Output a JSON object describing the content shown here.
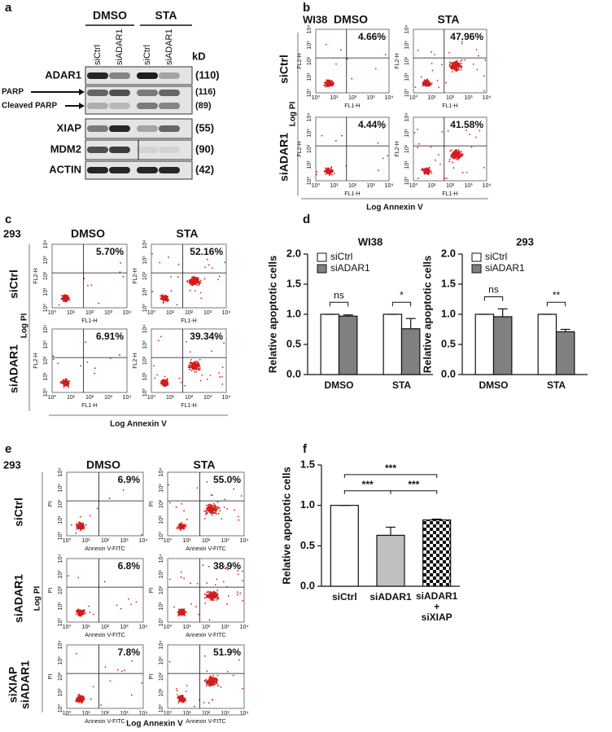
{
  "panels": {
    "a": {
      "label": "a",
      "groups": [
        "DMSO",
        "STA"
      ],
      "lanes": [
        "siCtrl",
        "siADAR1",
        "siCtrl",
        "siADAR1"
      ],
      "unit": "kD",
      "blots": [
        {
          "name": "ADAR1",
          "kd": "(110)"
        },
        {
          "name": "PARP",
          "kd": "(116)"
        },
        {
          "name": "Cleaved PARP",
          "kd": "(89)"
        },
        {
          "name": "XIAP",
          "kd": "(55)"
        },
        {
          "name": "MDM2",
          "kd": "(90)"
        },
        {
          "name": "ACTIN",
          "kd": "(42)"
        }
      ]
    },
    "b": {
      "label": "b",
      "cell": "WI38",
      "columns": [
        "DMSO",
        "STA"
      ],
      "rows": [
        "siCtrl",
        "siADAR1"
      ],
      "y_axis": "Log PI",
      "x_axis": "Log Annexin V",
      "plot_x": "FL1-H",
      "plot_y": "FL2-H",
      "ticks": [
        "10⁰",
        "10¹",
        "10²",
        "10³",
        "10⁴"
      ],
      "percent": [
        [
          "4.66%",
          "47.96%"
        ],
        [
          "4.44%",
          "41.58%"
        ]
      ]
    },
    "c": {
      "label": "c",
      "cell": "293",
      "columns": [
        "DMSO",
        "STA"
      ],
      "rows": [
        "siCtrl",
        "siADAR1"
      ],
      "y_axis": "Log PI",
      "x_axis": "Log Annexin V",
      "plot_x": "FL1-H",
      "plot_y": "FL2-H",
      "ticks": [
        "10⁰",
        "10¹",
        "10²",
        "10³",
        "10⁴"
      ],
      "percent": [
        [
          "5.70%",
          "52.16%"
        ],
        [
          "6.91%",
          "39.34%"
        ]
      ]
    },
    "d": {
      "label": "d"
    },
    "e": {
      "label": "e",
      "cell": "293",
      "columns": [
        "DMSO",
        "STA"
      ],
      "rows": [
        "siCtrl",
        "siADAR1",
        "siXIAP\nsiADAR1"
      ],
      "y_axis": "Log PI",
      "x_axis": "Log Annexin V",
      "plot_x": "Annexin V-FITC",
      "plot_y": "PI",
      "ticks": [
        "10⁰",
        "10¹",
        "10²",
        "10³",
        "10⁴"
      ],
      "percent": [
        [
          "6.9%",
          "55.0%"
        ],
        [
          "6.8%",
          "38.9%"
        ],
        [
          "7.8%",
          "51.9%"
        ]
      ]
    },
    "f": {
      "label": "f"
    }
  },
  "chart_data": [
    {
      "type": "bar",
      "title": "WI38",
      "y_label": "Relative apoptotic cells",
      "categories": [
        "DMSO",
        "STA"
      ],
      "series": [
        {
          "name": "siCtrl",
          "color": "#ffffff",
          "values": [
            1.0,
            1.0
          ],
          "errors": [
            0,
            0
          ]
        },
        {
          "name": "siADAR1",
          "color": "#808080",
          "values": [
            0.97,
            0.76
          ],
          "errors": [
            0.02,
            0.17
          ]
        }
      ],
      "ylim": [
        0,
        2.0
      ],
      "yticks": [
        {
          "value": 0,
          "label": "0.0"
        },
        {
          "value": 0.5,
          "label": "0.5"
        },
        {
          "value": 1.0,
          "label": "1.0"
        },
        {
          "value": 1.5,
          "label": "1.5"
        },
        {
          "value": 2.0,
          "label": "2.0"
        }
      ],
      "legend": "upper left",
      "significance": [
        "ns",
        "*"
      ]
    },
    {
      "type": "bar",
      "title": "293",
      "y_label": "Relative apoptotic cells",
      "categories": [
        "DMSO",
        "STA"
      ],
      "series": [
        {
          "name": "siCtrl",
          "color": "#ffffff",
          "values": [
            1.0,
            1.0
          ],
          "errors": [
            0,
            0
          ]
        },
        {
          "name": "siADAR1",
          "color": "#808080",
          "values": [
            0.96,
            0.71
          ],
          "errors": [
            0.13,
            0.04
          ]
        }
      ],
      "ylim": [
        0,
        2.0
      ],
      "yticks": [
        {
          "value": 0,
          "label": "0.0"
        },
        {
          "value": 0.5,
          "label": "0.5"
        },
        {
          "value": 1.0,
          "label": "1.0"
        },
        {
          "value": 1.5,
          "label": "1.5"
        },
        {
          "value": 2.0,
          "label": "2.0"
        }
      ],
      "legend": "upper left",
      "significance": [
        "ns",
        "**"
      ]
    },
    {
      "type": "bar",
      "y_label": "Relative apoptotic cells",
      "categories": [
        "siCtrl",
        "siADAR1",
        "siADAR1\n+\nsiXIAP"
      ],
      "series": [
        {
          "values": [
            1.0,
            0.63,
            0.82
          ],
          "errors": [
            0,
            0.1,
            0.01
          ],
          "colors": [
            "#ffffff",
            "#c0c0c0",
            "#ffffff"
          ],
          "fills": [
            "solid",
            "solid",
            "checkerboard"
          ]
        }
      ],
      "ylim": [
        0,
        1.5
      ],
      "yticks": [
        {
          "value": 0,
          "label": "0.0"
        },
        {
          "value": 0.5,
          "label": "0.5"
        },
        {
          "value": 1.0,
          "label": "1.0"
        },
        {
          "value": 1.5,
          "label": "1.5"
        }
      ],
      "significance": [
        "***",
        "***",
        "***"
      ]
    }
  ]
}
